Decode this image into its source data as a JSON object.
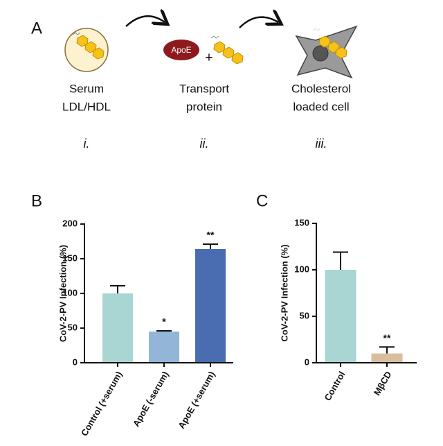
{
  "panel_labels": [
    "A",
    "B",
    "C"
  ],
  "panel_a": {
    "apoe": "ApoE",
    "plus": "+",
    "steps": [
      {
        "lines": [
          "Serum",
          "LDL/HDL"
        ],
        "numeral": "i."
      },
      {
        "lines": [
          "Transport",
          "protein"
        ],
        "numeral": "ii."
      },
      {
        "lines": [
          "Cholesterol",
          "loaded cell"
        ],
        "numeral": "iii."
      }
    ]
  },
  "chart_data": [
    {
      "type": "bar",
      "y_label": "CoV-2-PV Infection (%)",
      "categories": [
        "Control (+serum)",
        "ApoE (-serum)",
        "ApoE (+serum)"
      ],
      "values": [
        100,
        45,
        164
      ],
      "errors": [
        11,
        1,
        7
      ],
      "significance": [
        null,
        "*",
        "**"
      ],
      "colors": [
        "#a9d6d2",
        "#93b5d8",
        "#4a6db1"
      ],
      "ylim": [
        0,
        200
      ],
      "yticks": [
        0,
        50,
        100,
        150,
        200
      ]
    },
    {
      "type": "bar",
      "y_label": "CoV-2-PV Infection (%)",
      "categories": [
        "Control",
        "MβCD"
      ],
      "values": [
        100,
        10
      ],
      "errors": [
        19,
        7
      ],
      "significance": [
        null,
        "**"
      ],
      "colors": [
        "#a9d6d2",
        "#d9bd9c"
      ],
      "ylim": [
        0,
        150
      ],
      "yticks": [
        0,
        50,
        100,
        150
      ]
    }
  ]
}
